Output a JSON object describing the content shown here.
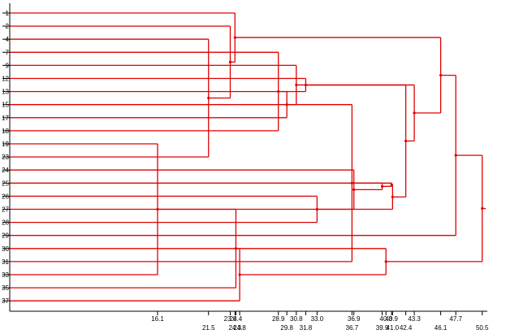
{
  "chart_data": {
    "type": "dendrogram",
    "orientation": "horizontal",
    "root_side": "right",
    "leaves": [
      "1",
      "2",
      "4",
      "7",
      "9",
      "12",
      "13",
      "15",
      "17",
      "18",
      "19",
      "23",
      "24",
      "25",
      "26",
      "27",
      "28",
      "29",
      "30",
      "31",
      "33",
      "35",
      "37"
    ],
    "axis": {
      "tick_values": [
        16.1,
        21.5,
        23.8,
        24.3,
        24.4,
        24.8,
        28.9,
        29.8,
        30.8,
        31.8,
        33.0,
        36.7,
        36.9,
        39.9,
        40.3,
        40.9,
        41.0,
        42.4,
        43.3,
        46.1,
        47.7,
        50.5
      ],
      "tick_labels_upper": [
        "16.1",
        "23.8",
        "24.4",
        "28.9",
        "30.8",
        "33.0",
        "36.9",
        "40.3",
        "40.9",
        "43.3",
        "47.7"
      ],
      "tick_labels_lower": [
        "21.5",
        "24.3",
        "24.8",
        "29.8",
        "31.8",
        "36.7",
        "39.9",
        "41.0",
        "42.4",
        "46.1",
        "50.5"
      ]
    },
    "merges": [
      {
        "left": "19",
        "right": "33",
        "height": 16.1
      },
      {
        "left": "4",
        "right": "23",
        "height": 21.5
      },
      {
        "left": "2",
        "right": "C2",
        "height": 23.8
      },
      {
        "left": "1",
        "right": "C3",
        "height": 24.3
      },
      {
        "left": "C1",
        "right": "35",
        "height": 24.4
      },
      {
        "left": "C5",
        "right": "37",
        "height": 24.8
      },
      {
        "left": "7",
        "right": "18",
        "height": 28.9
      },
      {
        "left": "17",
        "right": "C7",
        "height": 29.8
      },
      {
        "left": "9",
        "right": "C8",
        "height": 30.8
      },
      {
        "left": "12",
        "right": "13",
        "height": 31.8
      },
      {
        "left": "26",
        "right": "28",
        "height": 33.0
      },
      {
        "left": "15",
        "right": "31",
        "height": 36.7
      },
      {
        "left": "24",
        "right": "C11",
        "height": 36.9
      },
      {
        "left": "25",
        "right": "C13",
        "height": 39.9
      },
      {
        "left": "30",
        "right": "C6",
        "height": 40.3
      },
      {
        "left": "C12",
        "right": "C14",
        "height": 40.9
      },
      {
        "left": "C16",
        "right": "27",
        "height": 41.0
      },
      {
        "left": "C17",
        "right": "C9",
        "height": 42.4
      },
      {
        "left": "C10",
        "right": "C18",
        "height": 43.3
      },
      {
        "left": "C19",
        "right": "C4",
        "height": 46.1
      },
      {
        "left": "C20",
        "right": "29",
        "height": 47.7
      },
      {
        "left": "C21",
        "right": "C15",
        "height": 50.5
      }
    ]
  },
  "style": {
    "line_color": "#e00000",
    "axis_color": "#000000",
    "text_color": "#000000"
  }
}
